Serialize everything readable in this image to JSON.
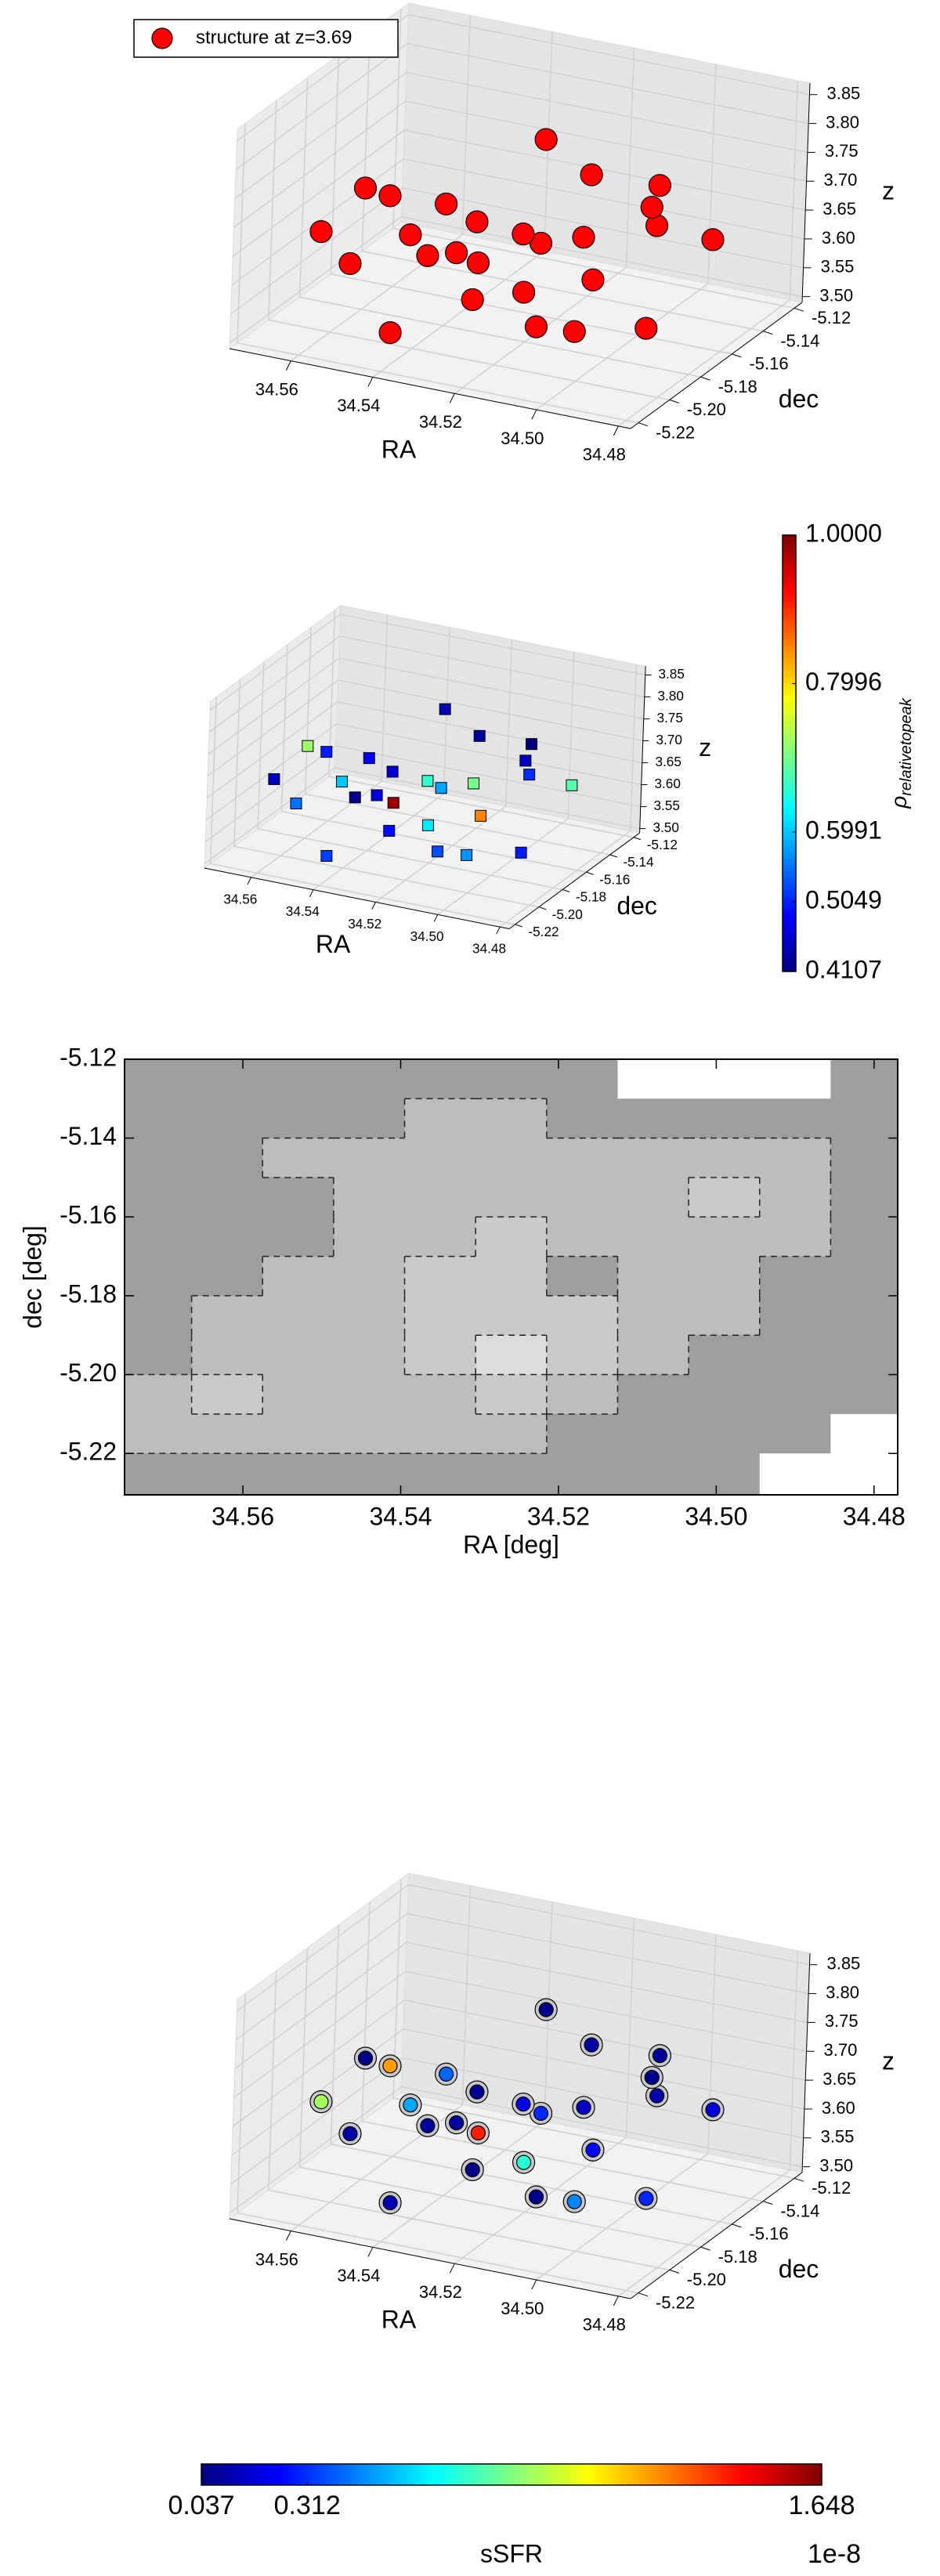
{
  "chart_data": [
    {
      "type": "scatter3d",
      "legend": "structure at z=3.69",
      "legend_loc": "upper left",
      "color": "#ff0000",
      "marker": "o",
      "xlabel": "RA",
      "ylabel": "dec",
      "zlabel": "z",
      "xlim": [
        34.575,
        34.477
      ],
      "ylim": [
        -5.225,
        -5.115
      ],
      "zlim": [
        3.49,
        3.87
      ],
      "xticks": [
        34.56,
        34.54,
        34.52,
        {
          "value": 34.5,
          "label": "34.50"
        },
        34.48
      ],
      "yticks": [
        -5.22,
        {
          "value": -5.2,
          "label": "-5.20"
        },
        -5.18,
        -5.16,
        -5.14,
        -5.12
      ],
      "zticks": [
        {
          "value": 3.5,
          "label": "3.50"
        },
        3.55,
        {
          "value": 3.6,
          "label": "3.60"
        },
        3.65,
        {
          "value": 3.7,
          "label": "3.70"
        },
        3.75,
        {
          "value": 3.8,
          "label": "3.80"
        },
        3.85
      ],
      "ra": [
        34.565,
        34.563,
        34.56,
        34.555,
        34.552,
        34.548,
        34.545,
        34.54,
        34.538,
        34.535,
        34.532,
        34.53,
        34.528,
        34.525,
        34.522,
        34.52,
        34.517,
        34.514,
        34.51,
        34.507,
        34.504,
        34.5,
        34.497,
        34.494,
        34.49,
        34.487
      ],
      "dec": [
        -5.15,
        -5.2,
        -5.18,
        -5.14,
        -5.21,
        -5.17,
        -5.19,
        -5.16,
        -5.22,
        -5.13,
        -5.18,
        -5.2,
        -5.15,
        -5.17,
        -5.21,
        -5.14,
        -5.19,
        -5.16,
        -5.2,
        -5.13,
        -5.18,
        -5.15,
        -5.21,
        -5.17,
        -5.14,
        -5.19
      ],
      "z": [
        3.62,
        3.66,
        3.7,
        3.6,
        3.64,
        3.58,
        3.66,
        3.63,
        3.56,
        3.72,
        3.61,
        3.67,
        3.59,
        3.65,
        3.62,
        3.7,
        3.6,
        3.64,
        3.57,
        3.68,
        3.62,
        3.66,
        3.6,
        3.74,
        3.63,
        3.58
      ]
    },
    {
      "type": "scatter3d",
      "marker": "s",
      "cmap": "jet",
      "xlabel": "RA",
      "ylabel": "dec",
      "zlabel": "z",
      "xlim": [
        34.575,
        34.477
      ],
      "ylim": [
        -5.225,
        -5.115
      ],
      "zlim": [
        3.49,
        3.87
      ],
      "xticks": [
        34.56,
        34.54,
        34.52,
        {
          "value": 34.5,
          "label": "34.50"
        },
        34.48
      ],
      "yticks": [
        -5.22,
        {
          "value": -5.2,
          "label": "-5.20"
        },
        -5.18,
        -5.16,
        -5.14,
        -5.12
      ],
      "zticks": [
        {
          "value": 3.5,
          "label": "3.50"
        },
        3.55,
        {
          "value": 3.6,
          "label": "3.60"
        },
        3.65,
        {
          "value": 3.7,
          "label": "3.70"
        },
        3.75,
        {
          "value": 3.8,
          "label": "3.80"
        },
        3.85
      ],
      "ra": [
        34.565,
        34.563,
        34.56,
        34.555,
        34.552,
        34.548,
        34.545,
        34.54,
        34.538,
        34.535,
        34.532,
        34.53,
        34.528,
        34.525,
        34.522,
        34.52,
        34.517,
        34.514,
        34.51,
        34.507,
        34.504,
        34.5,
        34.497,
        34.494,
        34.49,
        34.487
      ],
      "dec": [
        -5.15,
        -5.2,
        -5.18,
        -5.14,
        -5.21,
        -5.17,
        -5.19,
        -5.16,
        -5.22,
        -5.13,
        -5.18,
        -5.2,
        -5.15,
        -5.17,
        -5.21,
        -5.14,
        -5.19,
        -5.16,
        -5.2,
        -5.13,
        -5.18,
        -5.15,
        -5.21,
        -5.17,
        -5.14,
        -5.19
      ],
      "z": [
        3.62,
        3.66,
        3.7,
        3.6,
        3.64,
        3.58,
        3.66,
        3.63,
        3.56,
        3.72,
        3.61,
        3.67,
        3.59,
        3.65,
        3.62,
        3.7,
        3.6,
        3.64,
        3.57,
        3.68,
        3.62,
        3.66,
        3.6,
        3.74,
        3.63,
        3.58
      ],
      "color_values": [
        0.5,
        0.45,
        0.72,
        0.48,
        0.55,
        0.42,
        0.6,
        0.46,
        0.52,
        0.44,
        0.98,
        0.47,
        0.58,
        0.66,
        0.49,
        0.43,
        0.62,
        0.7,
        0.53,
        0.41,
        0.85,
        0.51,
        0.57,
        0.45,
        0.68,
        0.5
      ],
      "colorbar": {
        "orientation": "vertical",
        "lim": [
          0.4107,
          1.0
        ],
        "ticks": [
          0.4107,
          0.5049,
          0.5991,
          0.7996,
          {
            "value": 1.0,
            "label": "1.0000"
          }
        ],
        "label": "ρ",
        "label_sub": "relativetopeak"
      }
    },
    {
      "type": "contour",
      "xlabel": "RA [deg]",
      "ylabel": "dec [deg]",
      "xlim": [
        34.575,
        34.477
      ],
      "ylim": [
        -5.2305,
        -5.12
      ],
      "xticks": [
        34.56,
        34.54,
        34.52,
        {
          "value": 34.5,
          "label": "34.50"
        },
        34.48
      ],
      "yticks": [
        -5.12,
        -5.14,
        -5.16,
        -5.18,
        {
          "value": -5.2,
          "label": "-5.20"
        },
        -5.22
      ],
      "grid_x": [
        34.571,
        34.562,
        34.553,
        34.544,
        34.535,
        34.526,
        34.517,
        34.508,
        34.499,
        34.49,
        34.481
      ],
      "grid_y": [
        -5.125,
        -5.135,
        -5.145,
        -5.155,
        -5.165,
        -5.175,
        -5.185,
        -5.195,
        -5.205,
        -5.215,
        -5.225
      ],
      "level_colors": [
        "#ffffff",
        "#9e9e9e",
        "#bdbdbd",
        "#cacaca",
        "#dcdcdc"
      ],
      "density": [
        [
          1,
          1,
          1,
          1,
          1,
          1,
          1,
          0,
          0,
          0,
          1
        ],
        [
          1,
          1,
          1,
          1,
          2,
          2,
          1,
          1,
          1,
          1,
          1
        ],
        [
          1,
          1,
          2,
          2,
          2,
          2,
          2,
          2,
          2,
          2,
          1
        ],
        [
          1,
          1,
          1,
          2,
          2,
          2,
          2,
          2,
          3,
          2,
          1
        ],
        [
          1,
          1,
          1,
          2,
          2,
          3,
          2,
          2,
          2,
          2,
          1
        ],
        [
          1,
          1,
          2,
          2,
          3,
          3,
          1,
          2,
          2,
          1,
          1
        ],
        [
          1,
          2,
          2,
          2,
          3,
          3,
          3,
          2,
          2,
          1,
          1
        ],
        [
          1,
          2,
          2,
          2,
          3,
          4,
          3,
          2,
          1,
          1,
          1
        ],
        [
          2,
          3,
          2,
          2,
          2,
          3,
          2,
          1,
          1,
          1,
          1
        ],
        [
          2,
          2,
          2,
          2,
          2,
          2,
          1,
          1,
          1,
          1,
          0
        ],
        [
          1,
          1,
          1,
          1,
          1,
          1,
          1,
          1,
          1,
          0,
          0
        ]
      ]
    },
    {
      "type": "scatter3d",
      "marker": "ring",
      "cmap": "jet",
      "xlabel": "RA",
      "ylabel": "dec",
      "zlabel": "z",
      "xlim": [
        34.575,
        34.477
      ],
      "ylim": [
        -5.225,
        -5.115
      ],
      "zlim": [
        3.49,
        3.87
      ],
      "xticks": [
        34.56,
        34.54,
        34.52,
        {
          "value": 34.5,
          "label": "34.50"
        },
        34.48
      ],
      "yticks": [
        -5.22,
        {
          "value": -5.2,
          "label": "-5.20"
        },
        -5.18,
        -5.16,
        -5.14,
        -5.12
      ],
      "zticks": [
        {
          "value": 3.5,
          "label": "3.50"
        },
        3.55,
        {
          "value": 3.6,
          "label": "3.60"
        },
        3.65,
        {
          "value": 3.7,
          "label": "3.70"
        },
        3.75,
        {
          "value": 3.8,
          "label": "3.80"
        },
        3.85
      ],
      "ra": [
        34.565,
        34.563,
        34.56,
        34.555,
        34.552,
        34.548,
        34.545,
        34.54,
        34.538,
        34.535,
        34.532,
        34.53,
        34.528,
        34.525,
        34.522,
        34.52,
        34.517,
        34.514,
        34.51,
        34.507,
        34.504,
        34.5,
        34.497,
        34.494,
        34.49,
        34.487
      ],
      "dec": [
        -5.15,
        -5.2,
        -5.18,
        -5.14,
        -5.21,
        -5.17,
        -5.19,
        -5.16,
        -5.22,
        -5.13,
        -5.18,
        -5.2,
        -5.15,
        -5.17,
        -5.21,
        -5.14,
        -5.19,
        -5.16,
        -5.2,
        -5.13,
        -5.18,
        -5.15,
        -5.21,
        -5.17,
        -5.14,
        -5.19
      ],
      "z": [
        3.62,
        3.66,
        3.7,
        3.6,
        3.64,
        3.58,
        3.66,
        3.63,
        3.56,
        3.72,
        3.61,
        3.67,
        3.59,
        3.65,
        3.62,
        3.7,
        3.6,
        3.64,
        3.57,
        3.68,
        3.62,
        3.66,
        3.6,
        3.74,
        3.63,
        3.58
      ],
      "color_values": [
        1.2,
        0.9,
        0.05,
        0.4,
        0.1,
        0.08,
        0.5,
        0.07,
        0.12,
        0.06,
        1.4,
        0.09,
        0.3,
        0.2,
        0.06,
        0.1,
        0.7,
        0.15,
        0.05,
        0.08,
        0.25,
        0.11,
        0.45,
        0.06,
        0.18,
        0.3
      ],
      "colorbar": {
        "orientation": "horizontal",
        "lim": [
          0.037,
          1.648
        ],
        "ticks": [
          0.037,
          0.312,
          1.648
        ],
        "label": "sSFR",
        "offset": "1e-8"
      }
    }
  ]
}
